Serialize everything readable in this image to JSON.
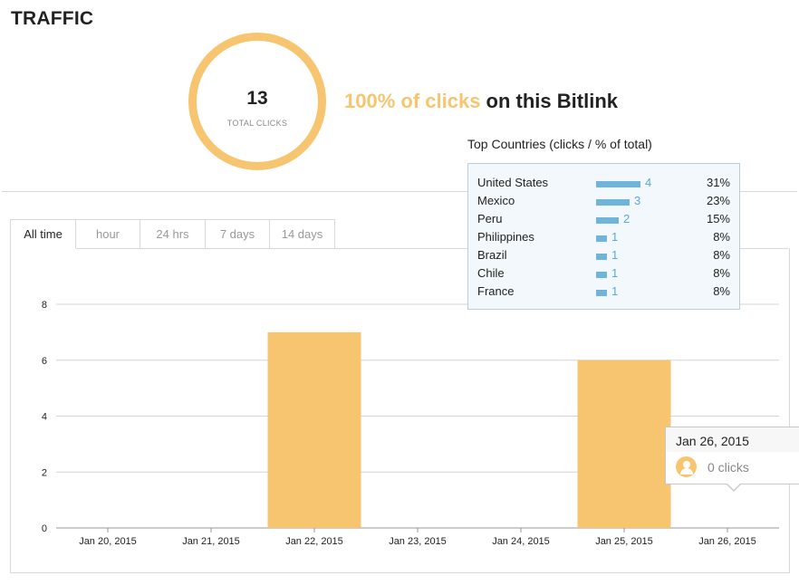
{
  "header": {
    "title": "TRAFFIC"
  },
  "summary": {
    "total_clicks": "13",
    "total_clicks_label": "TOTAL CLICKS",
    "headline_highlight": "100% of clicks",
    "headline_rest": " on this Bitlink",
    "accent_color": "#f7c570"
  },
  "tabs": [
    {
      "label": "All time",
      "active": true
    },
    {
      "label": "hour",
      "active": false
    },
    {
      "label": "24 hrs",
      "active": false
    },
    {
      "label": "7 days",
      "active": false
    },
    {
      "label": "14 days",
      "active": false
    }
  ],
  "countries": {
    "title": "Top Countries (clicks / % of total)",
    "bar_color": "#6fb5da",
    "rows": [
      {
        "name": "United States",
        "clicks": 4,
        "percent": "31%"
      },
      {
        "name": "Mexico",
        "clicks": 3,
        "percent": "23%"
      },
      {
        "name": "Peru",
        "clicks": 2,
        "percent": "15%"
      },
      {
        "name": "Philippines",
        "clicks": 1,
        "percent": "8%"
      },
      {
        "name": "Brazil",
        "clicks": 1,
        "percent": "8%"
      },
      {
        "name": "Chile",
        "clicks": 1,
        "percent": "8%"
      },
      {
        "name": "France",
        "clicks": 1,
        "percent": "8%"
      }
    ]
  },
  "tooltip": {
    "date": "Jan 26, 2015",
    "clicks_text": "0 clicks",
    "icon": "user-icon"
  },
  "chart_data": {
    "type": "bar",
    "categories": [
      "Jan 20, 2015",
      "Jan 21, 2015",
      "Jan 22, 2015",
      "Jan 23, 2015",
      "Jan 24, 2015",
      "Jan 25, 2015",
      "Jan 26, 2015"
    ],
    "values": [
      0,
      0,
      7,
      0,
      0,
      6,
      0
    ],
    "yticks": [
      0,
      2,
      4,
      6,
      8
    ],
    "ylim": [
      0,
      8
    ],
    "grid": true,
    "bar_color": "#f7c570"
  }
}
